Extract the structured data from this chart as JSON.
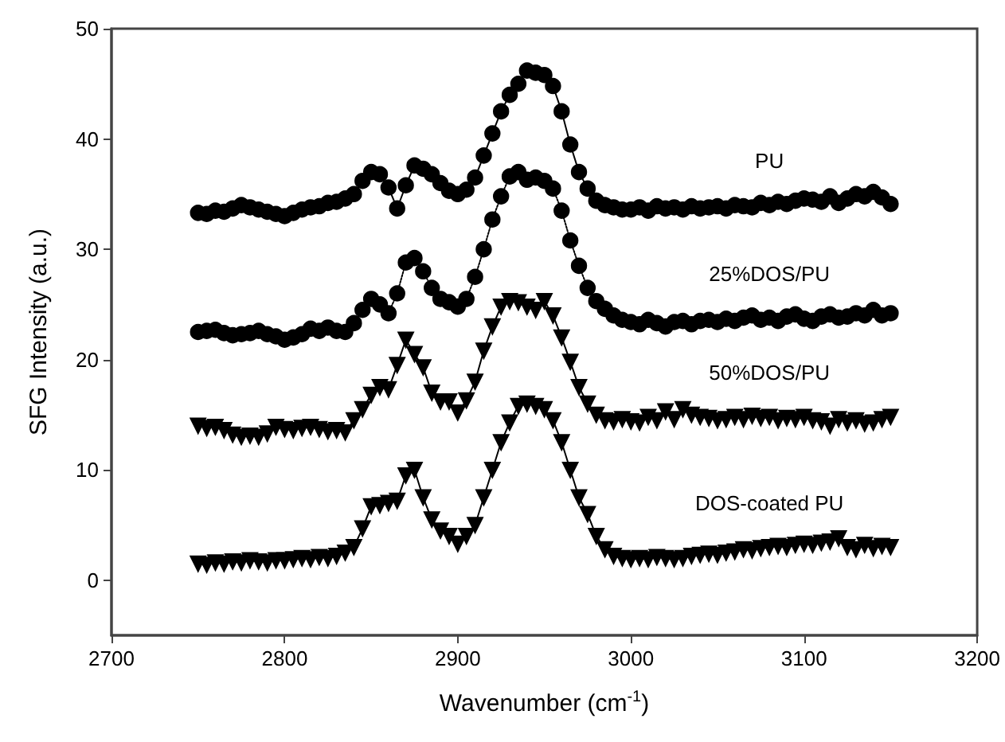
{
  "chart_data": {
    "type": "line",
    "xlabel": "Wavenumber (cm$^{-1}$)",
    "ylabel": "SFG Intensity (a.u.)",
    "xlim": [
      2700,
      3200
    ],
    "xticks": [
      2700,
      2800,
      2900,
      3000,
      3100,
      3200
    ],
    "ylim": [
      -5,
      50
    ],
    "yticks": [
      0,
      10,
      20,
      30,
      40,
      50
    ],
    "grid": false,
    "legend": false,
    "x": [
      2750,
      2755,
      2760,
      2765,
      2770,
      2775,
      2780,
      2785,
      2790,
      2795,
      2800,
      2805,
      2810,
      2815,
      2820,
      2825,
      2830,
      2835,
      2840,
      2845,
      2850,
      2855,
      2860,
      2865,
      2870,
      2875,
      2880,
      2885,
      2890,
      2895,
      2900,
      2905,
      2910,
      2915,
      2920,
      2925,
      2930,
      2935,
      2940,
      2945,
      2950,
      2955,
      2960,
      2965,
      2970,
      2975,
      2980,
      2985,
      2990,
      2995,
      3000,
      3005,
      3010,
      3015,
      3020,
      3025,
      3030,
      3035,
      3040,
      3045,
      3050,
      3055,
      3060,
      3065,
      3070,
      3075,
      3080,
      3085,
      3090,
      3095,
      3100,
      3105,
      3110,
      3115,
      3120,
      3125,
      3130,
      3135,
      3140,
      3145,
      3150
    ],
    "series": [
      {
        "name": "PU",
        "color": "#000000",
        "marker": "circle",
        "line_style": "solid",
        "values": [
          33.3,
          33.2,
          33.5,
          33.4,
          33.7,
          34.0,
          33.8,
          33.6,
          33.4,
          33.2,
          33.0,
          33.3,
          33.6,
          33.8,
          33.9,
          34.2,
          34.3,
          34.6,
          35.0,
          36.2,
          37.0,
          36.8,
          35.6,
          33.7,
          35.8,
          37.6,
          37.3,
          36.8,
          36.0,
          35.3,
          35.0,
          35.4,
          36.5,
          38.5,
          40.5,
          42.5,
          44.0,
          45.0,
          46.2,
          46.0,
          45.8,
          44.8,
          42.5,
          39.5,
          37.0,
          35.5,
          34.4,
          34.0,
          33.8,
          33.6,
          33.6,
          33.8,
          33.5,
          33.9,
          33.7,
          33.8,
          33.6,
          33.9,
          33.7,
          33.8,
          33.9,
          33.7,
          34.0,
          33.9,
          33.8,
          34.2,
          34.0,
          34.3,
          34.1,
          34.4,
          34.6,
          34.5,
          34.3,
          34.8,
          34.2,
          34.6,
          35.0,
          34.8,
          35.2,
          34.7,
          34.1
        ]
      },
      {
        "name": "25%DOS/PU",
        "color": "#000000",
        "marker": "circle",
        "line_style": "dotted",
        "values": [
          22.5,
          22.6,
          22.7,
          22.4,
          22.2,
          22.3,
          22.4,
          22.6,
          22.3,
          22.1,
          21.8,
          22.0,
          22.3,
          22.8,
          22.6,
          22.9,
          22.6,
          22.5,
          23.3,
          24.5,
          25.5,
          25.0,
          24.2,
          26.0,
          28.8,
          29.2,
          28.0,
          26.5,
          25.5,
          25.2,
          24.8,
          25.5,
          27.5,
          30.0,
          32.7,
          34.8,
          36.6,
          37.0,
          36.3,
          36.5,
          36.2,
          35.5,
          33.5,
          30.8,
          28.5,
          26.5,
          25.3,
          24.6,
          24.0,
          23.6,
          23.4,
          23.2,
          23.6,
          23.3,
          23.0,
          23.4,
          23.5,
          23.2,
          23.5,
          23.6,
          23.4,
          23.7,
          23.5,
          23.8,
          24.0,
          23.6,
          23.8,
          23.5,
          23.9,
          24.1,
          23.7,
          23.5,
          23.9,
          24.1,
          23.8,
          23.9,
          24.2,
          24.0,
          24.5,
          24.0,
          24.2
        ]
      },
      {
        "name": "50%DOS/PU",
        "color": "#000000",
        "marker": "triangle",
        "line_style": "solid",
        "values": [
          14.0,
          13.8,
          13.9,
          13.6,
          13.2,
          13.0,
          13.1,
          13.0,
          13.3,
          13.9,
          13.7,
          13.6,
          13.8,
          13.9,
          13.7,
          13.5,
          13.6,
          13.4,
          14.5,
          15.5,
          16.8,
          17.5,
          17.3,
          19.5,
          21.8,
          20.5,
          19.3,
          17.0,
          16.2,
          16.2,
          15.2,
          16.3,
          18.0,
          20.8,
          23.0,
          24.8,
          25.3,
          25.2,
          24.8,
          24.5,
          25.3,
          24.0,
          22.0,
          19.8,
          17.5,
          16.0,
          15.0,
          14.5,
          14.4,
          14.6,
          14.4,
          14.3,
          14.8,
          14.5,
          15.3,
          14.6,
          15.5,
          15.0,
          14.8,
          14.7,
          14.5,
          14.6,
          14.8,
          14.6,
          14.9,
          14.7,
          14.8,
          14.5,
          14.7,
          14.6,
          14.8,
          14.5,
          14.4,
          14.0,
          14.6,
          14.3,
          14.5,
          14.2,
          14.3,
          14.6,
          14.8
        ]
      },
      {
        "name": "DOS-coated PU",
        "color": "#000000",
        "marker": "triangle",
        "line_style": "solid",
        "values": [
          1.5,
          1.4,
          1.6,
          1.5,
          1.7,
          1.6,
          1.8,
          1.7,
          1.6,
          1.8,
          1.8,
          1.9,
          2.0,
          1.9,
          2.1,
          2.0,
          2.2,
          2.5,
          3.0,
          4.7,
          6.7,
          6.8,
          7.0,
          7.2,
          9.5,
          10.0,
          7.5,
          5.5,
          4.5,
          4.0,
          3.3,
          4.0,
          5.0,
          7.5,
          10.0,
          12.5,
          14.3,
          15.8,
          16.0,
          15.8,
          15.5,
          14.5,
          12.5,
          10.0,
          7.5,
          6.0,
          4.0,
          2.8,
          2.2,
          2.0,
          1.9,
          2.0,
          1.9,
          2.1,
          2.0,
          1.9,
          2.0,
          2.2,
          2.3,
          2.4,
          2.3,
          2.5,
          2.6,
          2.8,
          2.7,
          2.9,
          3.0,
          3.1,
          3.0,
          3.2,
          3.3,
          3.2,
          3.4,
          3.5,
          3.8,
          3.0,
          2.8,
          3.2,
          2.9,
          3.1,
          3.0
        ]
      }
    ]
  }
}
